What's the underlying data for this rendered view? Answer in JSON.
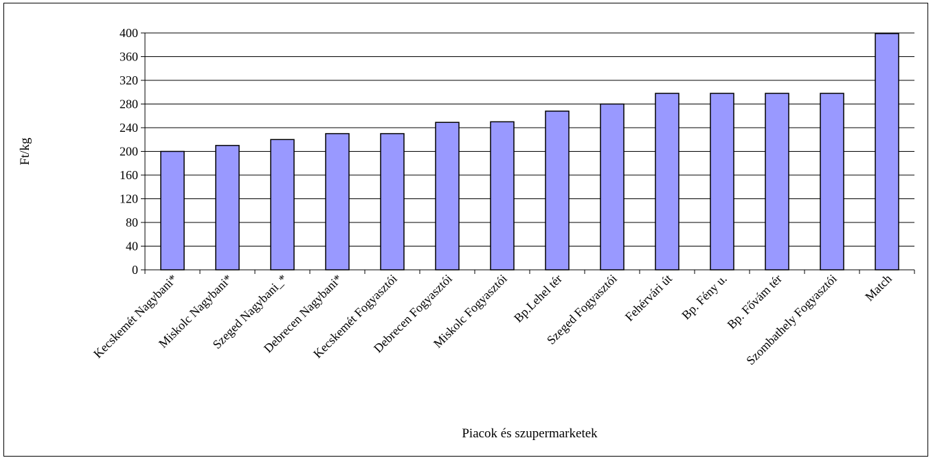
{
  "chart_data": {
    "type": "bar",
    "title": "",
    "xlabel": "Piacok és szupermarketek",
    "ylabel": "Ft/kg",
    "categories": [
      "Kecskemét Nagybani*",
      "Miskolc  Nagybani*",
      "Szeged Nagybani_*",
      "Debrecen Nagybani*",
      "Kecskemét Fogyasztói",
      "Debrecen  Fogyasztói",
      "Miskolc Fogyasztói",
      "Bp.Lehel tér",
      "Szeged Fogyasztói",
      "Fehérvári út",
      "Bp. Fény u.",
      "Bp. Fővám tér",
      "Szombathely Fogyasztói",
      "Match"
    ],
    "values": [
      200,
      210,
      220,
      230,
      230,
      249,
      250,
      268,
      280,
      298,
      298,
      298,
      298,
      399
    ],
    "ylim": [
      0,
      400
    ],
    "yticks": [
      0,
      40,
      80,
      120,
      160,
      200,
      240,
      280,
      320,
      360,
      400
    ],
    "grid": true,
    "legend": "none",
    "bar_color": "#9999ff",
    "bar_border_color": "#000000"
  }
}
